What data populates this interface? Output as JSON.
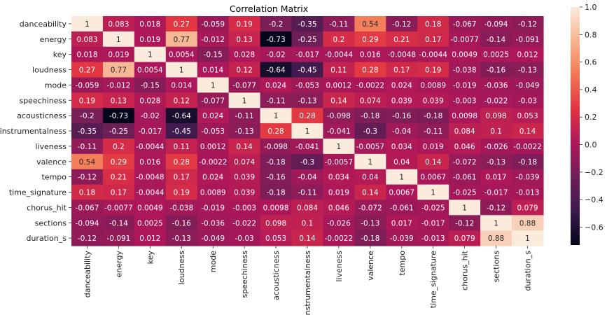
{
  "chart_data": {
    "type": "heatmap",
    "title": "Correlation Matrix",
    "xlabel": "",
    "ylabel": "",
    "labels": [
      "danceability",
      "energy",
      "key",
      "loudness",
      "mode",
      "speechiness",
      "acousticness",
      "instrumentalness",
      "liveness",
      "valence",
      "tempo",
      "time_signature",
      "chorus_hit",
      "sections",
      "duration_s"
    ],
    "cell_labels": [
      [
        "1",
        "0.083",
        "0.018",
        "0.27",
        "-0.059",
        "0.19",
        "-0.2",
        "-0.35",
        "-0.11",
        "0.54",
        "-0.12",
        "0.18",
        "-0.067",
        "-0.094",
        "-0.12"
      ],
      [
        "0.083",
        "1",
        "0.019",
        "0.77",
        "-0.012",
        "0.13",
        "-0.73",
        "-0.25",
        "0.2",
        "0.29",
        "0.21",
        "0.17",
        "-0.0077",
        "-0.14",
        "-0.091"
      ],
      [
        "0.018",
        "0.019",
        "1",
        "0.0054",
        "-0.15",
        "0.028",
        "-0.02",
        "-0.017",
        "-0.0044",
        "0.016",
        "-0.0048",
        "-0.0044",
        "0.0049",
        "0.0025",
        "0.012"
      ],
      [
        "0.27",
        "0.77",
        "0.0054",
        "1",
        "0.014",
        "0.12",
        "-0.64",
        "-0.45",
        "0.11",
        "0.28",
        "0.17",
        "0.19",
        "-0.038",
        "-0.16",
        "-0.13"
      ],
      [
        "-0.059",
        "-0.012",
        "-0.15",
        "0.014",
        "1",
        "-0.077",
        "0.024",
        "-0.053",
        "0.0012",
        "-0.0022",
        "0.024",
        "0.0089",
        "-0.019",
        "-0.036",
        "-0.049"
      ],
      [
        "0.19",
        "0.13",
        "0.028",
        "0.12",
        "-0.077",
        "1",
        "-0.11",
        "-0.13",
        "0.14",
        "0.074",
        "0.039",
        "0.039",
        "-0.003",
        "-0.022",
        "-0.03"
      ],
      [
        "-0.2",
        "-0.73",
        "-0.02",
        "-0.64",
        "0.024",
        "-0.11",
        "1",
        "0.28",
        "-0.098",
        "-0.18",
        "-0.16",
        "-0.18",
        "0.0098",
        "0.098",
        "0.053"
      ],
      [
        "-0.35",
        "-0.25",
        "-0.017",
        "-0.45",
        "-0.053",
        "-0.13",
        "0.28",
        "1",
        "-0.041",
        "-0.3",
        "-0.04",
        "-0.11",
        "0.084",
        "0.1",
        "0.14"
      ],
      [
        "-0.11",
        "0.2",
        "-0.0044",
        "0.11",
        "0.0012",
        "0.14",
        "-0.098",
        "-0.041",
        "1",
        "-0.0057",
        "0.034",
        "0.019",
        "0.046",
        "-0.026",
        "-0.0022"
      ],
      [
        "0.54",
        "0.29",
        "0.016",
        "0.28",
        "-0.0022",
        "0.074",
        "-0.18",
        "-0.3",
        "-0.0057",
        "1",
        "0.04",
        "0.14",
        "-0.072",
        "-0.13",
        "-0.18"
      ],
      [
        "-0.12",
        "0.21",
        "-0.0048",
        "0.17",
        "0.024",
        "0.039",
        "-0.16",
        "-0.04",
        "0.034",
        "0.04",
        "1",
        "0.0067",
        "-0.061",
        "0.017",
        "-0.039"
      ],
      [
        "0.18",
        "0.17",
        "-0.0044",
        "0.19",
        "0.0089",
        "0.039",
        "-0.18",
        "-0.11",
        "0.019",
        "0.14",
        "0.0067",
        "1",
        "-0.025",
        "-0.017",
        "-0.013"
      ],
      [
        "-0.067",
        "-0.0077",
        "0.0049",
        "-0.038",
        "-0.019",
        "-0.003",
        "0.0098",
        "0.084",
        "0.046",
        "-0.072",
        "-0.061",
        "-0.025",
        "1",
        "-0.12",
        "0.079"
      ],
      [
        "-0.094",
        "-0.14",
        "0.0025",
        "-0.16",
        "-0.036",
        "-0.022",
        "0.098",
        "0.1",
        "-0.026",
        "-0.13",
        "0.017",
        "-0.017",
        "-0.12",
        "1",
        "0.88"
      ],
      [
        "-0.12",
        "-0.091",
        "0.012",
        "-0.13",
        "-0.049",
        "-0.03",
        "0.053",
        "0.14",
        "-0.0022",
        "-0.18",
        "-0.039",
        "-0.013",
        "0.079",
        "0.88",
        "1"
      ]
    ],
    "colorbar": {
      "range": [
        -0.73,
        1.0
      ],
      "ticks": [
        1.0,
        0.8,
        0.6,
        0.4,
        0.2,
        0.0,
        -0.2,
        -0.4,
        -0.6
      ],
      "tick_labels": [
        "1.0",
        "0.8",
        "0.6",
        "0.4",
        "0.2",
        "0.0",
        "−0.2",
        "−0.4",
        "−0.6"
      ],
      "colormap": "rocket",
      "colormap_stops": [
        "#03051a",
        "#3a1a4d",
        "#701f57",
        "#ad1759",
        "#e13342",
        "#f37651",
        "#f6b48f",
        "#faebdd"
      ]
    }
  }
}
